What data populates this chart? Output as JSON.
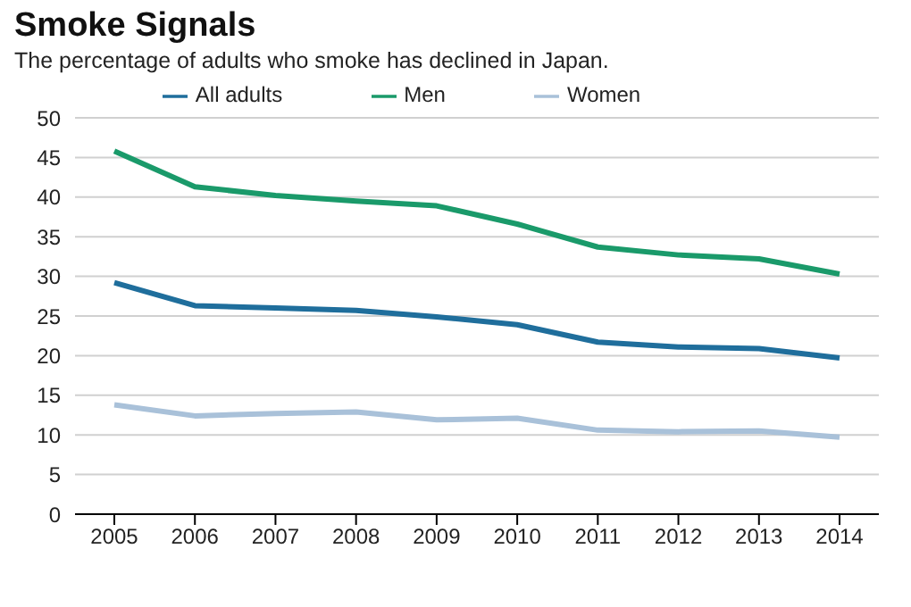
{
  "chart_data": {
    "type": "line",
    "title": "Smoke Signals",
    "subtitle": "The percentage of adults who smoke has declined in Japan.",
    "categories": [
      "2005",
      "2006",
      "2007",
      "2008",
      "2009",
      "2010",
      "2011",
      "2012",
      "2013",
      "2014"
    ],
    "series": [
      {
        "name": "All adults",
        "color": "#1f6e9c",
        "values": [
          29.2,
          26.3,
          26.0,
          25.7,
          24.9,
          23.9,
          21.7,
          21.1,
          20.9,
          19.7
        ]
      },
      {
        "name": "Men",
        "color": "#1a9a6a",
        "values": [
          45.8,
          41.3,
          40.2,
          39.5,
          38.9,
          36.6,
          33.7,
          32.7,
          32.2,
          30.3
        ]
      },
      {
        "name": "Women",
        "color": "#a9c1d9",
        "values": [
          13.8,
          12.4,
          12.7,
          12.9,
          11.9,
          12.1,
          10.6,
          10.4,
          10.5,
          9.7
        ]
      }
    ],
    "ylim": [
      0,
      50
    ],
    "yticks": [
      0,
      5,
      10,
      15,
      20,
      25,
      30,
      35,
      40,
      45,
      50
    ],
    "grid": "y",
    "legend": "top",
    "marker": "none",
    "line_style": "solid"
  }
}
